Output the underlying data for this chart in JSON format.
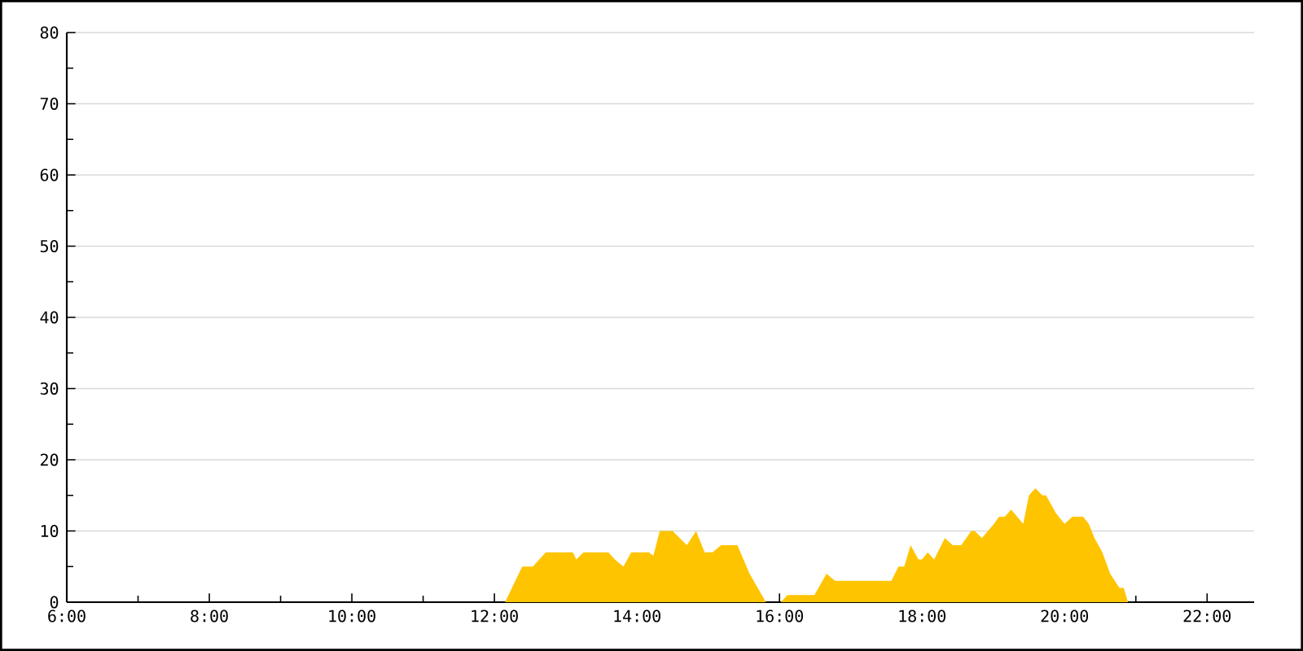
{
  "chart_data": {
    "type": "area",
    "x": [
      12.15,
      12.39,
      12.54,
      12.72,
      13.1,
      13.15,
      13.25,
      13.6,
      13.69,
      13.81,
      13.92,
      14.17,
      14.23,
      14.32,
      14.5,
      14.7,
      14.83,
      14.95,
      15.06,
      15.18,
      15.41,
      15.58,
      15.81,
      16.02,
      16.11,
      16.49,
      16.66,
      16.78,
      17.57,
      17.67,
      17.75,
      17.84,
      17.95,
      18.0,
      18.08,
      18.17,
      18.32,
      18.43,
      18.55,
      18.69,
      18.74,
      18.84,
      19.01,
      19.08,
      19.16,
      19.25,
      19.42,
      19.5,
      19.59,
      19.69,
      19.74,
      19.88,
      20.0,
      20.11,
      20.26,
      20.34,
      20.42,
      20.53,
      20.64,
      20.77,
      20.83,
      20.89
    ],
    "values": [
      0,
      5,
      5,
      7,
      7,
      6,
      7,
      7,
      6,
      5,
      7,
      7,
      6.5,
      10,
      10,
      8,
      10,
      7,
      7,
      8,
      8,
      4,
      0,
      0,
      1,
      1,
      4,
      3,
      3,
      5,
      5,
      8,
      6,
      6,
      7,
      6,
      9,
      8,
      8,
      10,
      10,
      9,
      11,
      12,
      12,
      13,
      11,
      15,
      16,
      15,
      15,
      12.5,
      11,
      12,
      12,
      11,
      9,
      7,
      4,
      2,
      2,
      0
    ],
    "color": "#ffc400",
    "xlim": [
      6,
      22.66
    ],
    "xticks": [
      {
        "value": 6,
        "label": "6:00"
      },
      {
        "value": 8,
        "label": "8:00"
      },
      {
        "value": 10,
        "label": "10:00"
      },
      {
        "value": 12,
        "label": "12:00"
      },
      {
        "value": 14,
        "label": "14:00"
      },
      {
        "value": 16,
        "label": "16:00"
      },
      {
        "value": 18,
        "label": "18:00"
      },
      {
        "value": 20,
        "label": "20:00"
      },
      {
        "value": 22,
        "label": "22:00"
      }
    ],
    "ylim": [
      0,
      80
    ],
    "yticks": [
      0,
      10,
      20,
      30,
      40,
      50,
      60,
      70,
      80
    ],
    "grid": "y"
  }
}
